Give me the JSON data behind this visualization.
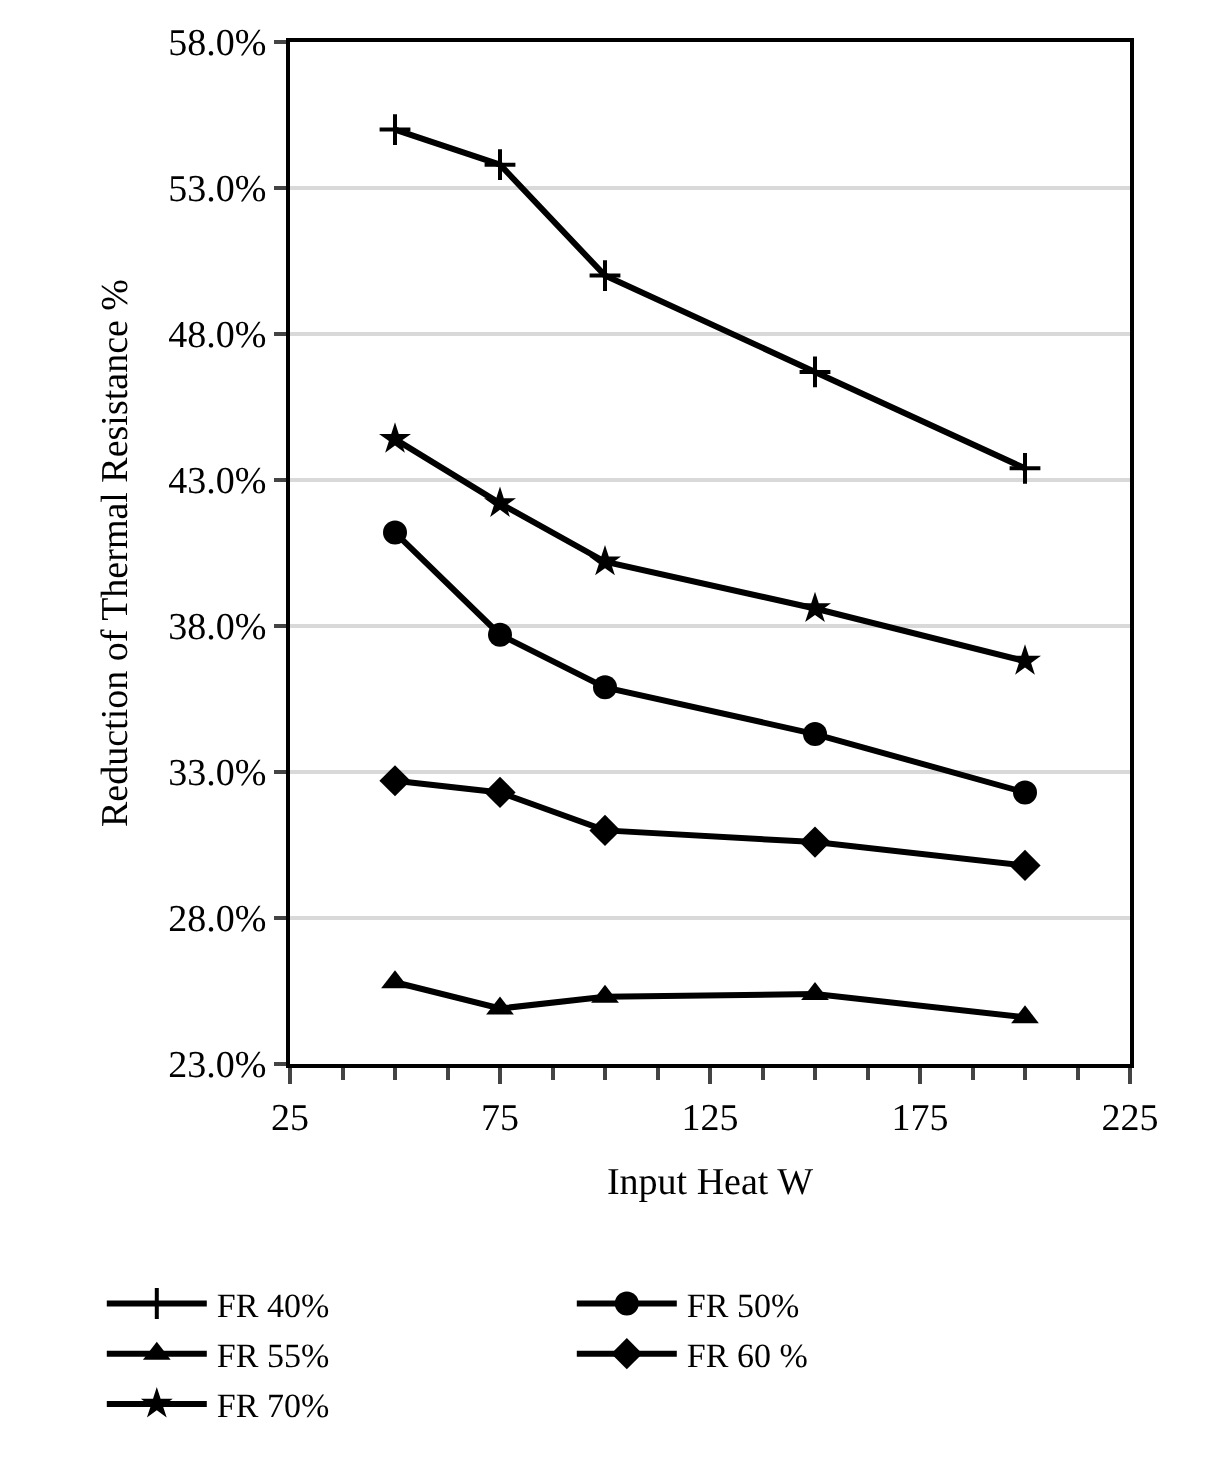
{
  "chart_data": {
    "type": "line",
    "xlabel": "Input Heat W",
    "ylabel": "Reduction of Thermal Resistance %",
    "x": [
      50,
      75,
      100,
      150,
      200
    ],
    "series": [
      {
        "name": "FR 40%",
        "color": "#000000",
        "marker": "cross",
        "values": [
          55.0,
          53.8,
          50.0,
          46.7,
          43.4
        ]
      },
      {
        "name": "FR 50%",
        "color": "#000000",
        "marker": "circle",
        "values": [
          41.2,
          37.7,
          35.9,
          34.3,
          32.3
        ]
      },
      {
        "name": "FR 55%",
        "color": "#000000",
        "marker": "triangle",
        "values": [
          25.8,
          24.9,
          25.3,
          25.4,
          24.6
        ]
      },
      {
        "name": "FR 60 %",
        "color": "#000000",
        "marker": "diamond",
        "values": [
          32.7,
          32.3,
          31.0,
          30.6,
          29.8
        ]
      },
      {
        "name": "FR 70%",
        "color": "#000000",
        "marker": "star",
        "values": [
          44.4,
          42.2,
          40.2,
          38.6,
          36.8
        ]
      }
    ],
    "xlim": [
      25,
      225
    ],
    "xticks": [
      25,
      75,
      125,
      175,
      225
    ],
    "ylim": [
      23,
      58
    ],
    "yticks": [
      {
        "value": 23,
        "label": "23.0%"
      },
      {
        "value": 28,
        "label": "28.0%"
      },
      {
        "value": 33,
        "label": "33.0%"
      },
      {
        "value": 38,
        "label": "38.0%"
      },
      {
        "value": 43,
        "label": "43.0%"
      },
      {
        "value": 48,
        "label": "48.0%"
      },
      {
        "value": 53,
        "label": "53.0%"
      },
      {
        "value": 58,
        "label": "58.0%"
      }
    ],
    "grid": "y",
    "legend": "bottom",
    "line_style": "solid"
  }
}
